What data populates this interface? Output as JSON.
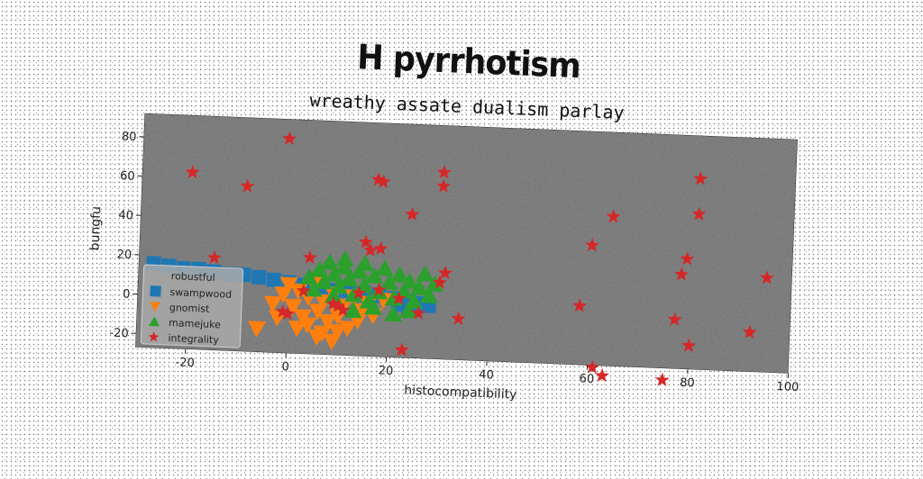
{
  "chart_data": {
    "type": "scatter",
    "title": "H pyrrhotism",
    "subtitle": "wreathy assate dualism parlay",
    "xlabel": "histocompatibility",
    "ylabel": "bungfu",
    "xlim": [
      -30,
      100
    ],
    "ylim": [
      -27,
      92
    ],
    "xticks": [
      -20,
      0,
      20,
      40,
      60,
      80,
      100
    ],
    "yticks": [
      -20,
      0,
      20,
      40,
      60,
      80
    ],
    "grid": false,
    "legend": {
      "title": "robustful",
      "placement": "lower-left"
    },
    "series": [
      {
        "name": "swampwood",
        "marker": "square",
        "color": "#1f77b4",
        "points": [
          [
            -27,
            16
          ],
          [
            -24,
            15
          ],
          [
            -21,
            14
          ],
          [
            -18,
            14
          ],
          [
            -15,
            13
          ],
          [
            -12,
            12
          ],
          [
            -9,
            12
          ],
          [
            -6,
            11
          ],
          [
            -3,
            10
          ],
          [
            0,
            9
          ],
          [
            3,
            8
          ],
          [
            6,
            7
          ],
          [
            9,
            6
          ],
          [
            12,
            6
          ],
          [
            15,
            5
          ],
          [
            18,
            4
          ],
          [
            21,
            3
          ],
          [
            24,
            2
          ],
          [
            26,
            1
          ],
          [
            28,
            0
          ],
          [
            22,
            0
          ],
          [
            24,
            -1
          ]
        ]
      },
      {
        "name": "gnomist",
        "marker": "triangle-down",
        "color": "#ff7f0e",
        "points": [
          [
            -6,
            -15
          ],
          [
            -3,
            -2
          ],
          [
            -1,
            3
          ],
          [
            0,
            8
          ],
          [
            1,
            -3
          ],
          [
            2,
            5
          ],
          [
            3,
            -8
          ],
          [
            4,
            2
          ],
          [
            4,
            -12
          ],
          [
            5,
            9
          ],
          [
            6,
            -5
          ],
          [
            7,
            0
          ],
          [
            7,
            -16
          ],
          [
            8,
            -10
          ],
          [
            9,
            4
          ],
          [
            9,
            -20
          ],
          [
            10,
            -7
          ],
          [
            11,
            -2
          ],
          [
            12,
            -13
          ],
          [
            13,
            3
          ],
          [
            14,
            -9
          ],
          [
            15,
            -4
          ],
          [
            16,
            0
          ],
          [
            17,
            -6
          ],
          [
            19,
            2
          ],
          [
            -2,
            -9
          ],
          [
            2,
            -14
          ],
          [
            6,
            -18
          ],
          [
            10,
            -15
          ]
        ]
      },
      {
        "name": "mamejuke",
        "marker": "triangle-up",
        "color": "#2ca02c",
        "points": [
          [
            4,
            12
          ],
          [
            5,
            6
          ],
          [
            6,
            16
          ],
          [
            7,
            10
          ],
          [
            8,
            20
          ],
          [
            9,
            14
          ],
          [
            10,
            8
          ],
          [
            11,
            18
          ],
          [
            12,
            12
          ],
          [
            13,
            4
          ],
          [
            14,
            16
          ],
          [
            15,
            9
          ],
          [
            16,
            1
          ],
          [
            17,
            14
          ],
          [
            18,
            6
          ],
          [
            19,
            18
          ],
          [
            20,
            11
          ],
          [
            21,
            3
          ],
          [
            22,
            15
          ],
          [
            23,
            7
          ],
          [
            24,
            12
          ],
          [
            25,
            2
          ],
          [
            26,
            9
          ],
          [
            27,
            16
          ],
          [
            28,
            5
          ],
          [
            29,
            11
          ],
          [
            9,
            3
          ],
          [
            13,
            -4
          ],
          [
            17,
            -2
          ],
          [
            21,
            -5
          ],
          [
            24,
            -3
          ],
          [
            11,
            22
          ],
          [
            15,
            20
          ]
        ]
      },
      {
        "name": "integrality",
        "marker": "star",
        "color": "#d62728",
        "points": [
          [
            -20,
            63
          ],
          [
            -9,
            57
          ],
          [
            -1,
            82
          ],
          [
            -15,
            20
          ],
          [
            4,
            22
          ],
          [
            15,
            31
          ],
          [
            16,
            27
          ],
          [
            18,
            28
          ],
          [
            17,
            63
          ],
          [
            18,
            62
          ],
          [
            24,
            46
          ],
          [
            30,
            61
          ],
          [
            30,
            68
          ],
          [
            31,
            17
          ],
          [
            30,
            12
          ],
          [
            23,
            -23
          ],
          [
            3,
            5
          ],
          [
            9,
            -1
          ],
          [
            11,
            -4
          ],
          [
            0,
            -7
          ],
          [
            18,
            7
          ],
          [
            22,
            3
          ],
          [
            26,
            -4
          ],
          [
            34,
            -6
          ],
          [
            60,
            34
          ],
          [
            58,
            3
          ],
          [
            61,
            -28
          ],
          [
            63,
            -32
          ],
          [
            64,
            49
          ],
          [
            75,
            -33
          ],
          [
            77,
            -2
          ],
          [
            78,
            21
          ],
          [
            79,
            29
          ],
          [
            80,
            -15
          ],
          [
            81,
            52
          ],
          [
            81,
            70
          ],
          [
            92,
            -7
          ],
          [
            95,
            21
          ],
          [
            10,
            -2
          ],
          [
            14,
            5
          ],
          [
            -1,
            -6
          ]
        ]
      }
    ]
  }
}
